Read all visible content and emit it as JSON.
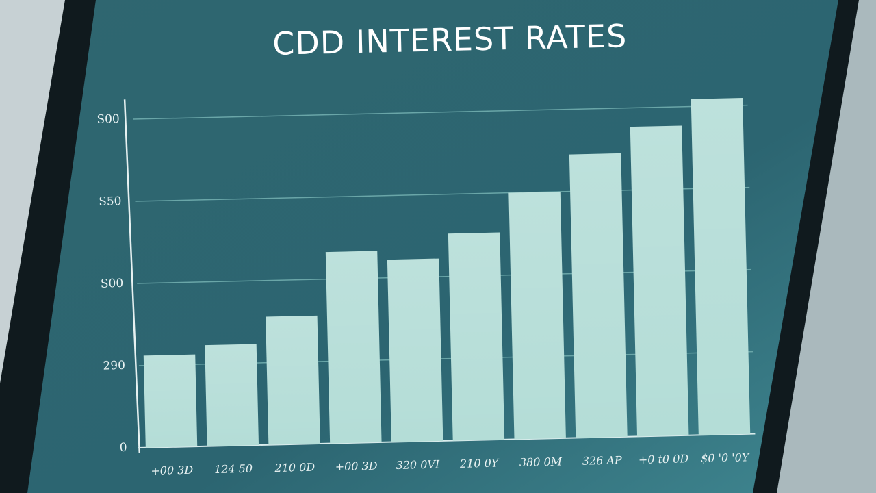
{
  "chart_data": {
    "type": "bar",
    "title": "CDD INTEREST RATES",
    "categories": [
      "+00 3D",
      "124 50",
      "210 0D",
      "+00 3D",
      "320 0VI",
      "210 0Y",
      "380 0M",
      "326 AP",
      "+0 t0 0D",
      "$0 '0 '0Y"
    ],
    "values": [
      112,
      123,
      156,
      233,
      222,
      252,
      300,
      345,
      377,
      409
    ],
    "color": "#b4ddd7",
    "ylim": [
      0,
      420
    ],
    "yticks": [
      0,
      {
        "value": 100,
        "label": "290"
      },
      {
        "value": 200,
        "label": "S00"
      },
      {
        "value": 300,
        "label": "S50"
      },
      {
        "value": 400,
        "label": "S00"
      }
    ],
    "grid": true
  }
}
